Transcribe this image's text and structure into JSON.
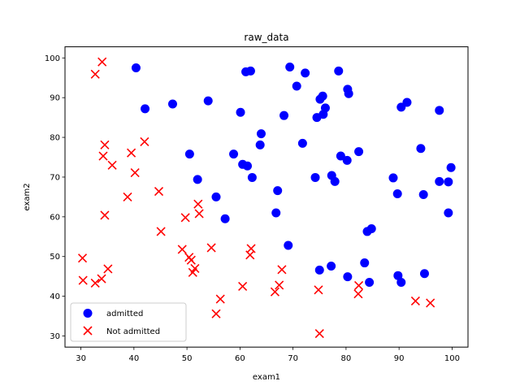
{
  "chart_data": {
    "type": "scatter",
    "title": "raw_data",
    "xlabel": "exam1",
    "ylabel": "exam2",
    "xlim": [
      27,
      103
    ],
    "ylim": [
      27.2,
      102.8
    ],
    "xticks": [
      30,
      40,
      50,
      60,
      70,
      80,
      90,
      100
    ],
    "yticks": [
      30,
      40,
      50,
      60,
      70,
      80,
      90,
      100
    ],
    "legend_position": "lower-left",
    "series": [
      {
        "name": "admitted",
        "marker": "circle",
        "color": "#0000ff",
        "points": [
          [
            40.4,
            97.5
          ],
          [
            42.1,
            87.2
          ],
          [
            47.3,
            88.4
          ],
          [
            54.0,
            89.2
          ],
          [
            60.1,
            86.3
          ],
          [
            61.1,
            96.5
          ],
          [
            62.0,
            96.7
          ],
          [
            69.4,
            97.7
          ],
          [
            72.3,
            96.2
          ],
          [
            78.6,
            96.7
          ],
          [
            70.7,
            92.9
          ],
          [
            80.3,
            92.1
          ],
          [
            80.5,
            91.0
          ],
          [
            75.1,
            89.6
          ],
          [
            75.6,
            90.4
          ],
          [
            76.1,
            87.4
          ],
          [
            74.5,
            85.0
          ],
          [
            75.7,
            85.8
          ],
          [
            68.3,
            85.5
          ],
          [
            90.4,
            87.6
          ],
          [
            91.5,
            88.8
          ],
          [
            97.6,
            86.8
          ],
          [
            64.0,
            80.9
          ],
          [
            63.8,
            78.1
          ],
          [
            71.8,
            78.5
          ],
          [
            50.5,
            75.8
          ],
          [
            58.8,
            75.8
          ],
          [
            60.5,
            73.2
          ],
          [
            61.4,
            72.8
          ],
          [
            52.0,
            69.4
          ],
          [
            62.3,
            69.9
          ],
          [
            74.2,
            69.9
          ],
          [
            77.3,
            70.4
          ],
          [
            77.9,
            68.9
          ],
          [
            79.0,
            75.3
          ],
          [
            80.2,
            74.2
          ],
          [
            82.4,
            76.4
          ],
          [
            88.9,
            69.8
          ],
          [
            94.1,
            77.2
          ],
          [
            97.6,
            68.9
          ],
          [
            99.3,
            68.8
          ],
          [
            99.8,
            72.4
          ],
          [
            55.5,
            65.0
          ],
          [
            57.2,
            59.5
          ],
          [
            67.1,
            66.6
          ],
          [
            66.8,
            61.0
          ],
          [
            69.1,
            52.8
          ],
          [
            89.7,
            65.8
          ],
          [
            94.6,
            65.6
          ],
          [
            99.3,
            61.0
          ],
          [
            84.8,
            57.0
          ],
          [
            84.0,
            56.3
          ],
          [
            75.0,
            46.6
          ],
          [
            77.2,
            47.6
          ],
          [
            83.5,
            48.4
          ],
          [
            80.3,
            44.9
          ],
          [
            84.4,
            43.5
          ],
          [
            89.8,
            45.2
          ],
          [
            90.4,
            43.5
          ],
          [
            94.8,
            45.7
          ]
        ]
      },
      {
        "name": "Not admitted",
        "marker": "x",
        "color": "#ff0000",
        "points": [
          [
            34.0,
            99.0
          ],
          [
            32.7,
            95.9
          ],
          [
            34.5,
            78.1
          ],
          [
            34.2,
            75.3
          ],
          [
            35.9,
            73.0
          ],
          [
            39.5,
            76.1
          ],
          [
            40.2,
            71.1
          ],
          [
            42.0,
            78.9
          ],
          [
            38.8,
            65.0
          ],
          [
            44.7,
            66.4
          ],
          [
            34.5,
            60.4
          ],
          [
            45.1,
            56.3
          ],
          [
            49.7,
            59.8
          ],
          [
            52.3,
            60.8
          ],
          [
            52.1,
            63.2
          ],
          [
            30.3,
            49.6
          ],
          [
            30.4,
            44.0
          ],
          [
            32.7,
            43.3
          ],
          [
            33.9,
            44.4
          ],
          [
            35.1,
            46.9
          ],
          [
            49.1,
            51.8
          ],
          [
            50.4,
            49.8
          ],
          [
            50.8,
            49.1
          ],
          [
            51.5,
            47.0
          ],
          [
            51.1,
            46.0
          ],
          [
            54.6,
            52.2
          ],
          [
            61.9,
            50.4
          ],
          [
            62.1,
            52.0
          ],
          [
            67.9,
            46.7
          ],
          [
            60.5,
            42.5
          ],
          [
            66.6,
            41.1
          ],
          [
            67.4,
            42.8
          ],
          [
            56.3,
            39.3
          ],
          [
            55.5,
            35.6
          ],
          [
            74.8,
            41.6
          ],
          [
            82.4,
            42.7
          ],
          [
            82.3,
            40.6
          ],
          [
            93.1,
            38.8
          ],
          [
            95.9,
            38.3
          ],
          [
            75.0,
            30.6
          ]
        ]
      }
    ]
  }
}
